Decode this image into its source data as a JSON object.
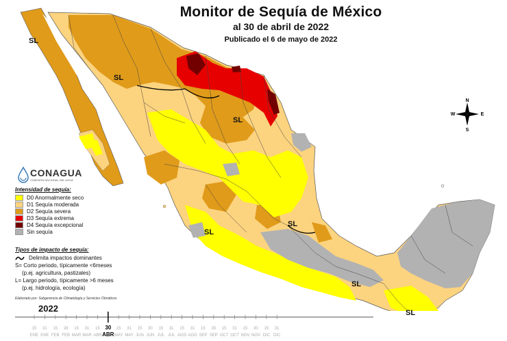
{
  "title": "Monitor de Sequía de México",
  "subtitle": "al 30 de abril de 2022",
  "published": "Publicado el 6 de mayo de 2022",
  "logo_text": "CONAGUA",
  "logo_small": "COMISIÓN NACIONAL DEL AGUA",
  "compass": {
    "n": "N",
    "s": "S",
    "e": "E",
    "w": "W"
  },
  "legend": {
    "title": "Intensidad de sequía:",
    "items": [
      {
        "label": "D0 Anormalmente seco",
        "color": "#ffff00"
      },
      {
        "label": "D1 Sequía moderada",
        "color": "#fcd37f"
      },
      {
        "label": "D2 Sequía severa",
        "color": "#e09b1a"
      },
      {
        "label": "D3 Sequía extrema",
        "color": "#e60000"
      },
      {
        "label": "D4 Sequía excepcional",
        "color": "#730000"
      },
      {
        "label": "Sin sequía",
        "color": "#b2b2b2"
      }
    ]
  },
  "impact": {
    "title": "Tipos de impacto de sequía:",
    "line_label": "Delimita impactos dominantes",
    "short": "S= Corto periodo, típicamente <6meses",
    "short_ex": "(p.ej. agricultura, pastizales)",
    "long": "L= Largo periodo, típicamente >6 meses",
    "long_ex": "(p.ej. hidrología, ecología)"
  },
  "credit": "Elaborado por: Subgerencia de Climatología y Servicios Climáticos",
  "map_labels": [
    "SL",
    "SL",
    "SL",
    "SL",
    "SL",
    "SL",
    "SL"
  ],
  "timeline": {
    "year": "2022",
    "ticks": [
      "15",
      "31",
      "15",
      "28",
      "15",
      "31",
      "15",
      "30",
      "15",
      "31",
      "15",
      "30",
      "15",
      "31",
      "15",
      "31",
      "15",
      "30",
      "15",
      "31",
      "15",
      "30",
      "15",
      "31"
    ],
    "months": [
      "ENE",
      "ENE",
      "FEB",
      "FEB",
      "MAR",
      "MAR",
      "ABR",
      "ABR",
      "MAY",
      "MAY",
      "JUN",
      "JUN",
      "JUL",
      "JUL",
      "AGO",
      "AGO",
      "SEP",
      "SEP",
      "OCT",
      "OCT",
      "NOV",
      "NOV",
      "DIC",
      "DIC"
    ],
    "current_day": "30",
    "current_month": "ABR"
  }
}
